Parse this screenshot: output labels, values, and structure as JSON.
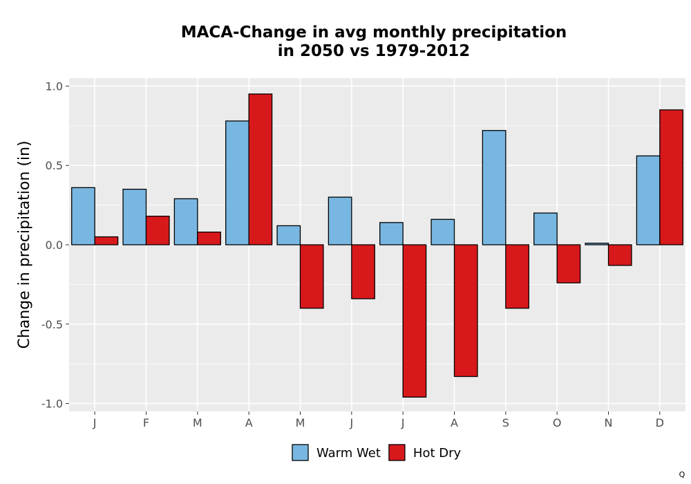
{
  "chart_data": {
    "type": "bar",
    "title_lines": [
      "MACA-Change in avg monthly precipitation",
      "in 2050 vs 1979-2012"
    ],
    "xlabel": "",
    "ylabel": "Change in precipitation (in)",
    "categories": [
      "J",
      "F",
      "M",
      "A",
      "M",
      "J",
      "J",
      "A",
      "S",
      "O",
      "N",
      "D"
    ],
    "series": [
      {
        "name": "Warm Wet",
        "color": "#78b7e1",
        "values": [
          0.36,
          0.35,
          0.29,
          0.78,
          0.12,
          0.3,
          0.14,
          0.16,
          0.72,
          0.2,
          0.01,
          0.56
        ]
      },
      {
        "name": "Hot Dry",
        "color": "#d7191c",
        "values": [
          0.05,
          0.18,
          0.08,
          0.95,
          -0.4,
          -0.34,
          -0.96,
          -0.83,
          -0.4,
          -0.24,
          -0.13,
          0.85
        ]
      }
    ],
    "ylim": [
      -1.05,
      1.05
    ],
    "yticks": [
      1.0,
      0.5,
      0.0,
      -0.5,
      -1.0
    ],
    "ytick_labels": [
      "1.0",
      "0.5",
      "0.0",
      "-0.5",
      "-1.0"
    ],
    "grid": true,
    "legend_position": "bottom",
    "panel_background": "#ebebeb",
    "bar_outline": "#000000"
  },
  "corner_mark": "Q"
}
